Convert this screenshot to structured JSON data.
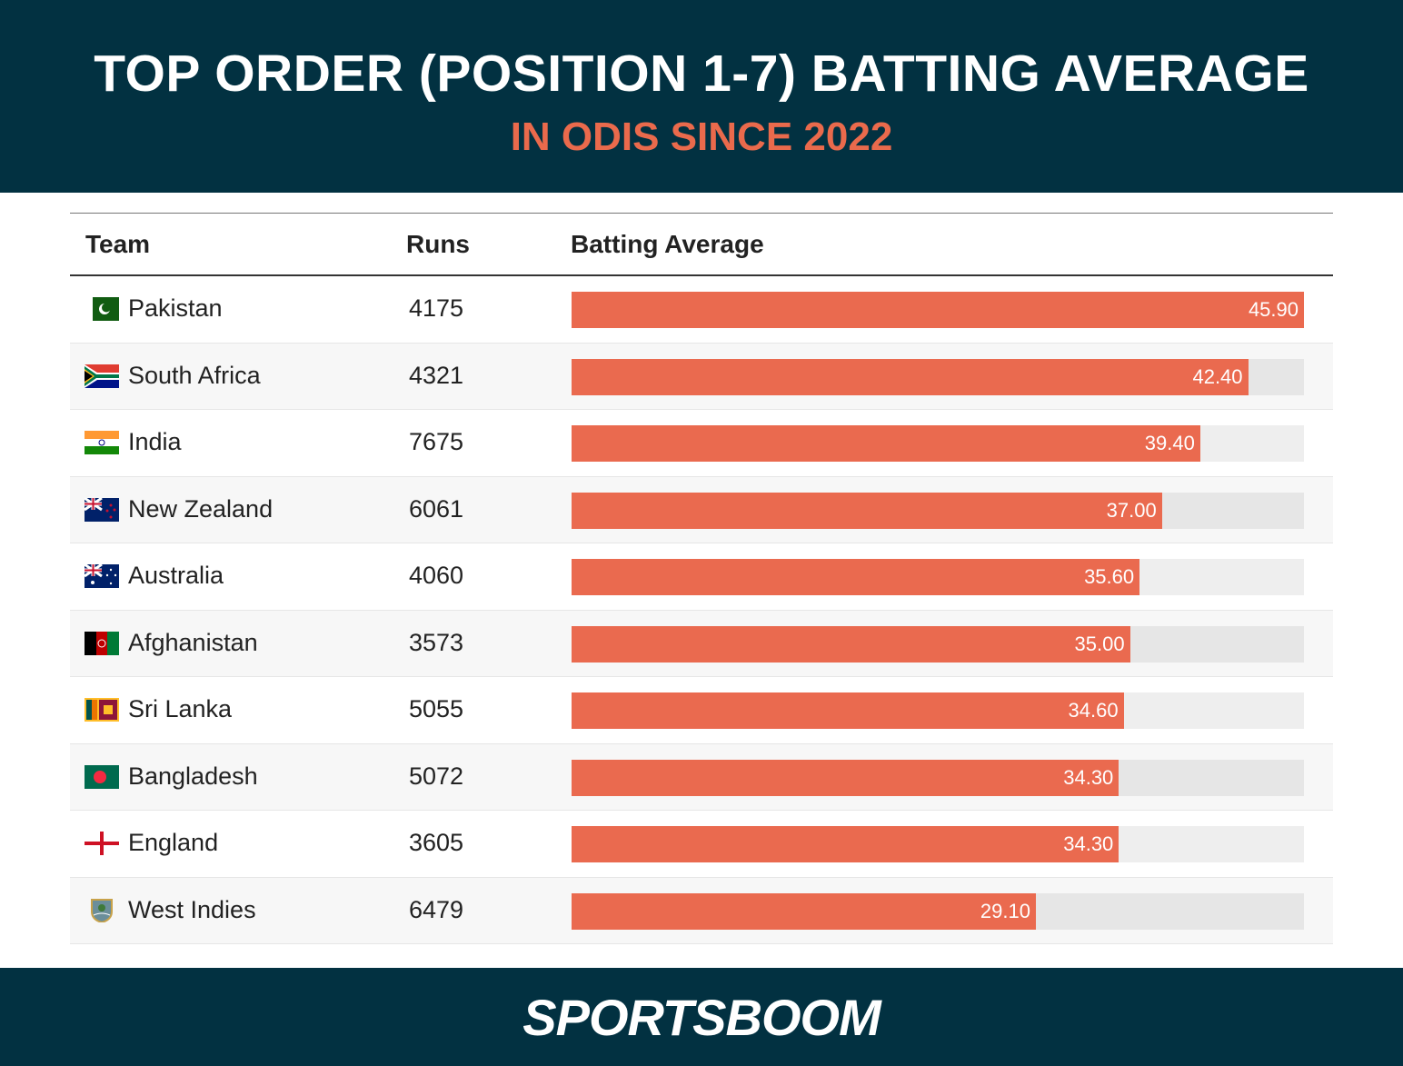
{
  "header": {
    "title": "TOP ORDER (POSITION 1-7) BATTING AVERAGE",
    "subtitle": "IN ODIS SINCE 2022"
  },
  "footer": {
    "logo": "SPORTSBOOM"
  },
  "colors": {
    "background_header": "#023141",
    "accent": "#ea6a4c",
    "bar": "#ea6a4f",
    "track": "#e6e6e6"
  },
  "chart_data": {
    "type": "table",
    "columns": [
      "Team",
      "Runs",
      "Batting Average"
    ],
    "xlim": [
      0,
      45.9
    ],
    "rows": [
      {
        "team": "Pakistan",
        "flag": "pakistan-flag-icon",
        "runs": "4175",
        "average": 45.9,
        "label": "45.90"
      },
      {
        "team": "South Africa",
        "flag": "south-africa-flag-icon",
        "runs": "4321",
        "average": 42.4,
        "label": "42.40"
      },
      {
        "team": "India",
        "flag": "india-flag-icon",
        "runs": "7675",
        "average": 39.4,
        "label": "39.40"
      },
      {
        "team": "New Zealand",
        "flag": "new-zealand-flag-icon",
        "runs": "6061",
        "average": 37.0,
        "label": "37.00"
      },
      {
        "team": "Australia",
        "flag": "australia-flag-icon",
        "runs": "4060",
        "average": 35.6,
        "label": "35.60"
      },
      {
        "team": "Afghanistan",
        "flag": "afghanistan-flag-icon",
        "runs": "3573",
        "average": 35.0,
        "label": "35.00"
      },
      {
        "team": "Sri Lanka",
        "flag": "sri-lanka-flag-icon",
        "runs": "5055",
        "average": 34.6,
        "label": "34.60"
      },
      {
        "team": "Bangladesh",
        "flag": "bangladesh-flag-icon",
        "runs": "5072",
        "average": 34.3,
        "label": "34.30"
      },
      {
        "team": "England",
        "flag": "england-flag-icon",
        "runs": "3605",
        "average": 34.3,
        "label": "34.30"
      },
      {
        "team": "West Indies",
        "flag": "west-indies-crest-icon",
        "runs": "6479",
        "average": 29.1,
        "label": "29.10"
      }
    ]
  }
}
